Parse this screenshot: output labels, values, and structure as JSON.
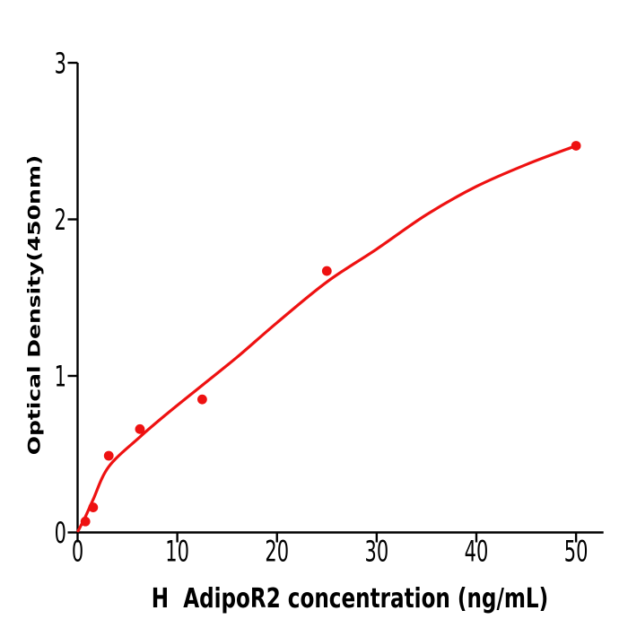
{
  "figure": {
    "background_color": "#ffffff",
    "axis_color": "#000000",
    "accent_color": "#EE1111"
  },
  "chart_data": {
    "type": "scatter",
    "title": "",
    "xlabel": "H  AdipoR2 concentration (ng/mL)",
    "ylabel": "Optical Density(450nm)",
    "xlim": [
      0,
      52.7
    ],
    "ylim": [
      0,
      3
    ],
    "xticks": [
      0,
      10,
      20,
      30,
      40,
      50
    ],
    "yticks": [
      0,
      1,
      2,
      3
    ],
    "grid": false,
    "legend_position": "none",
    "series": [
      {
        "name": "standard-points",
        "type": "scatter",
        "color": "#EE1111",
        "marker": "circle",
        "points": [
          [
            0.78,
            0.07
          ],
          [
            1.56,
            0.16
          ],
          [
            3.125,
            0.49
          ],
          [
            6.25,
            0.66
          ],
          [
            12.5,
            0.85
          ],
          [
            25,
            1.67
          ],
          [
            50,
            2.47
          ]
        ]
      },
      {
        "name": "fitted-curve",
        "type": "line",
        "color": "#EE1111",
        "points": [
          [
            0.05,
            0.01
          ],
          [
            0.78,
            0.1
          ],
          [
            1.56,
            0.21
          ],
          [
            3.125,
            0.42
          ],
          [
            6.25,
            0.61
          ],
          [
            9,
            0.76
          ],
          [
            12.5,
            0.94
          ],
          [
            16,
            1.12
          ],
          [
            20,
            1.34
          ],
          [
            25,
            1.6
          ],
          [
            30,
            1.81
          ],
          [
            35,
            2.03
          ],
          [
            40,
            2.21
          ],
          [
            45,
            2.35
          ],
          [
            50,
            2.47
          ]
        ]
      }
    ]
  }
}
